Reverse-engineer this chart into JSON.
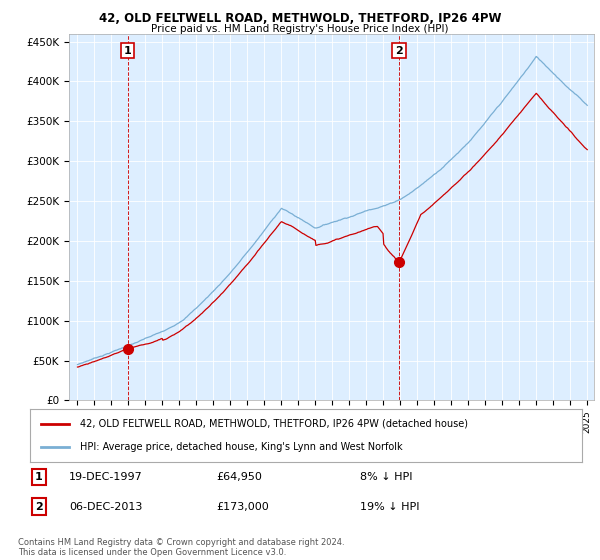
{
  "title1": "42, OLD FELTWELL ROAD, METHWOLD, THETFORD, IP26 4PW",
  "title2": "Price paid vs. HM Land Registry's House Price Index (HPI)",
  "legend_line1": "42, OLD FELTWELL ROAD, METHWOLD, THETFORD, IP26 4PW (detached house)",
  "legend_line2": "HPI: Average price, detached house, King's Lynn and West Norfolk",
  "footnote": "Contains HM Land Registry data © Crown copyright and database right 2024.\nThis data is licensed under the Open Government Licence v3.0.",
  "sale1_date": "19-DEC-1997",
  "sale1_price": 64950,
  "sale1_label": "8% ↓ HPI",
  "sale2_date": "06-DEC-2013",
  "sale2_price": 173000,
  "sale2_label": "19% ↓ HPI",
  "red_color": "#cc0000",
  "blue_color": "#7aafd4",
  "bg_color": "#ddeeff",
  "vline_color": "#cc0000",
  "ylim": [
    0,
    460000
  ],
  "yticks": [
    0,
    50000,
    100000,
    150000,
    200000,
    250000,
    300000,
    350000,
    400000,
    450000
  ],
  "ytick_labels": [
    "£0",
    "£50K",
    "£100K",
    "£150K",
    "£200K",
    "£250K",
    "£300K",
    "£350K",
    "£400K",
    "£450K"
  ],
  "sale1_year": 1997.96,
  "sale2_year": 2013.92,
  "xmin": 1994.5,
  "xmax": 2025.4
}
